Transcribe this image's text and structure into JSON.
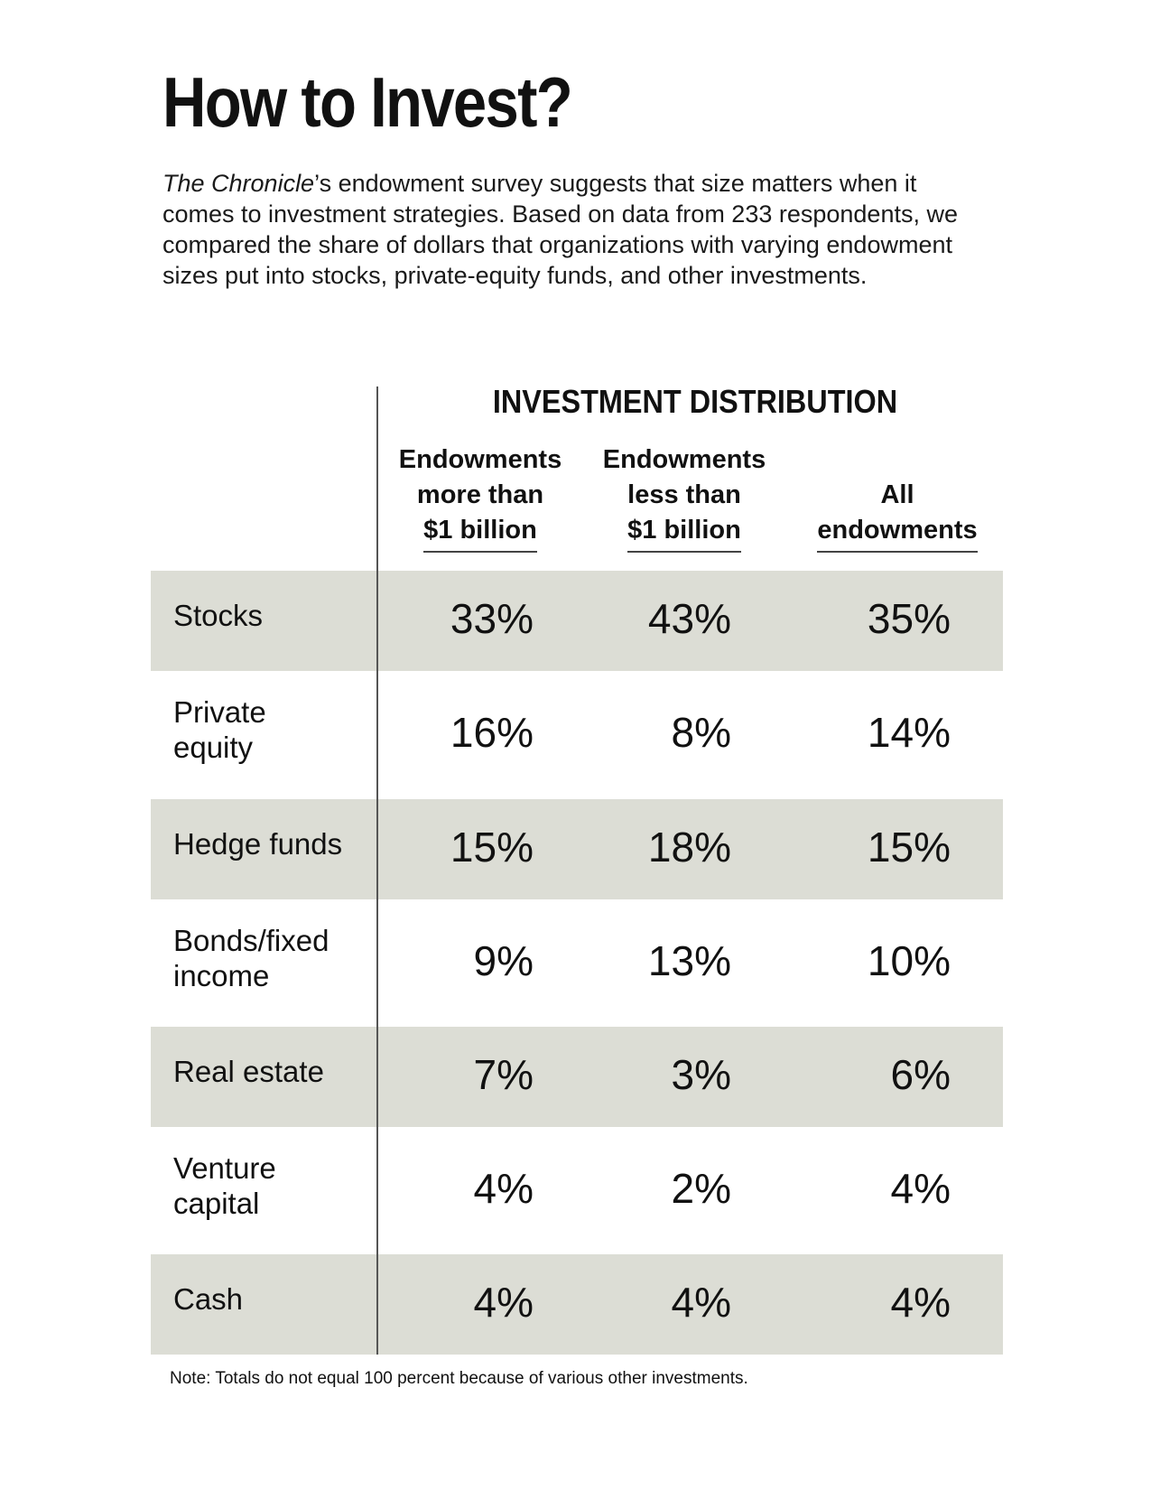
{
  "title": "How to Invest?",
  "intro": {
    "publication": "The Chronicle",
    "text": "’s endowment survey suggests that size matters when it comes to investment strategies. Based on data from 233 respondents, we compared the share of dollars that organizations with varying endowment sizes put into stocks, private-equity funds, and other investments."
  },
  "chart_data": {
    "type": "table",
    "group_header": "INVESTMENT DISTRIBUTION",
    "columns": [
      {
        "line1": "Endowments",
        "line2": "more than",
        "line3": "$1 billion"
      },
      {
        "line1": "Endowments",
        "line2": "less than",
        "line3": "$1 billion"
      },
      {
        "line1": "",
        "line2": "All",
        "line3": "endowments"
      }
    ],
    "rows": [
      {
        "label": [
          "Stocks"
        ],
        "values": [
          "33%",
          "43%",
          "35%"
        ]
      },
      {
        "label": [
          "Private",
          "equity"
        ],
        "values": [
          "16%",
          "8%",
          "14%"
        ]
      },
      {
        "label": [
          "Hedge funds"
        ],
        "values": [
          "15%",
          "18%",
          "15%"
        ]
      },
      {
        "label": [
          "Bonds/fixed",
          "income"
        ],
        "values": [
          "9%",
          "13%",
          "10%"
        ]
      },
      {
        "label": [
          "Real estate"
        ],
        "values": [
          "7%",
          "3%",
          "6%"
        ]
      },
      {
        "label": [
          "Venture",
          "capital"
        ],
        "values": [
          "4%",
          "2%",
          "4%"
        ]
      },
      {
        "label": [
          "Cash"
        ],
        "values": [
          "4%",
          "4%",
          "4%"
        ]
      }
    ],
    "row_shading_color": "#dcddd5"
  },
  "note": "Note: Totals do not equal 100 percent because of various other investments."
}
